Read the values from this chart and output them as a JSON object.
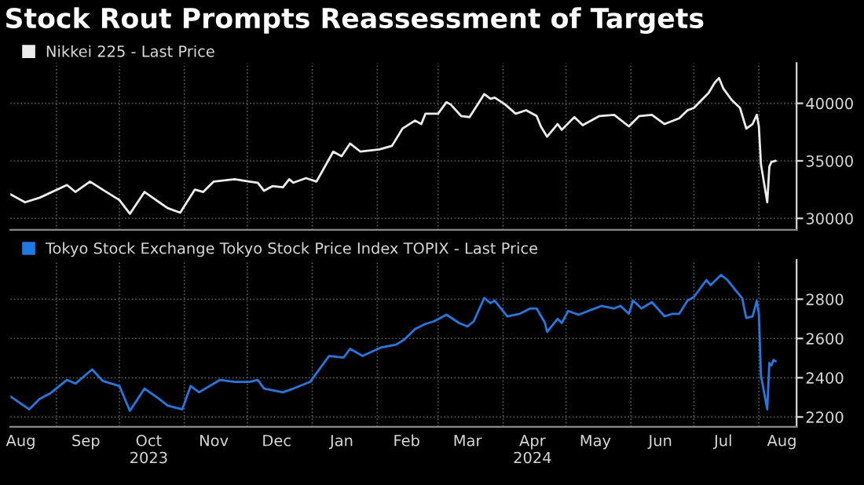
{
  "chart_data": [
    {
      "type": "line",
      "title": "Stock Rout Prompts Reassessment of Targets",
      "legend": "top left",
      "grid": true,
      "tick_labels": "y",
      "ylim": [
        29000,
        43500
      ],
      "yticks": [
        30000,
        35000,
        40000
      ],
      "xlim": [
        "2023-08-10",
        "2024-08-19"
      ],
      "xticks": [
        {
          "value": "2023-09-01",
          "label": null
        },
        {
          "value": "2023-10-01",
          "label": null
        },
        {
          "value": "2023-11-01",
          "label": null
        },
        {
          "value": "2023-12-01",
          "label": null
        },
        {
          "value": "2024-01-01",
          "label": null
        },
        {
          "value": "2024-02-01",
          "label": null
        },
        {
          "value": "2024-03-01",
          "label": null
        },
        {
          "value": "2024-04-01",
          "label": null
        },
        {
          "value": "2024-05-01",
          "label": null
        },
        {
          "value": "2024-06-01",
          "label": null
        },
        {
          "value": "2024-07-01",
          "label": null
        },
        {
          "value": "2024-08-01",
          "label": null
        }
      ],
      "series": [
        {
          "name": "Nikkei 225 - Last Price",
          "color": "#ececec",
          "x": [
            "2023-08-10",
            "2023-08-17",
            "2023-08-24",
            "2023-09-06",
            "2023-09-10",
            "2023-09-17",
            "2023-09-23",
            "2023-10-01",
            "2023-10-06",
            "2023-10-13",
            "2023-10-20",
            "2023-10-24",
            "2023-10-30",
            "2023-11-06",
            "2023-11-10",
            "2023-11-15",
            "2023-11-25",
            "2023-12-02",
            "2023-12-06",
            "2023-12-09",
            "2023-12-13",
            "2023-12-18",
            "2023-12-21",
            "2023-12-23",
            "2023-12-29",
            "2024-01-03",
            "2024-01-11",
            "2024-01-15",
            "2024-01-19",
            "2024-01-24",
            "2024-02-02",
            "2024-02-08",
            "2024-02-13",
            "2024-02-19",
            "2024-02-22",
            "2024-02-24",
            "2024-03-01",
            "2024-03-05",
            "2024-03-07",
            "2024-03-12",
            "2024-03-16",
            "2024-03-23",
            "2024-03-26",
            "2024-03-28",
            "2024-04-02",
            "2024-04-07",
            "2024-04-12",
            "2024-04-17",
            "2024-04-19",
            "2024-04-22",
            "2024-04-27",
            "2024-04-29",
            "2024-05-05",
            "2024-05-09",
            "2024-05-17",
            "2024-05-24",
            "2024-05-31",
            "2024-06-05",
            "2024-06-11",
            "2024-06-17",
            "2024-06-24",
            "2024-06-28",
            "2024-07-01",
            "2024-07-08",
            "2024-07-11",
            "2024-07-13",
            "2024-07-15",
            "2024-07-19",
            "2024-07-23",
            "2024-07-26",
            "2024-07-29",
            "2024-07-31",
            "2024-08-01",
            "2024-08-02",
            "2024-08-05",
            "2024-08-06",
            "2024-08-07",
            "2024-08-09"
          ],
          "values": [
            32100,
            31400,
            31800,
            32900,
            32300,
            33200,
            32500,
            31600,
            30400,
            32300,
            31400,
            30900,
            30500,
            32500,
            32300,
            33200,
            33400,
            33200,
            33100,
            32400,
            32800,
            32700,
            33400,
            33100,
            33500,
            33200,
            35800,
            35400,
            36500,
            35800,
            36000,
            36300,
            37800,
            38500,
            38200,
            39100,
            39100,
            40100,
            39900,
            38900,
            38800,
            40800,
            40400,
            40500,
            39900,
            39100,
            39400,
            38900,
            38000,
            37100,
            38200,
            37700,
            38800,
            38100,
            38900,
            39000,
            38000,
            38900,
            39000,
            38200,
            38700,
            39400,
            39600,
            40900,
            41800,
            42200,
            41300,
            40300,
            39600,
            37800,
            38200,
            39000,
            38000,
            34700,
            31400,
            34500,
            34900,
            35000
          ]
        }
      ]
    },
    {
      "type": "line",
      "grid": true,
      "legend": "top left",
      "ylim": [
        2150,
        3000
      ],
      "yticks": [
        2200,
        2400,
        2600,
        2800
      ],
      "xlim": [
        "2023-08-10",
        "2024-08-19"
      ],
      "xticks": [
        {
          "value": "2023-08-15",
          "label": "Aug"
        },
        {
          "value": "2023-09-01",
          "label": null
        },
        {
          "value": "2023-09-15",
          "label": "Sep"
        },
        {
          "value": "2023-10-01",
          "label": null
        },
        {
          "value": "2023-10-15",
          "label": "Oct\n2023"
        },
        {
          "value": "2023-11-01",
          "label": null
        },
        {
          "value": "2023-11-15",
          "label": "Nov"
        },
        {
          "value": "2023-12-01",
          "label": null
        },
        {
          "value": "2023-12-15",
          "label": "Dec"
        },
        {
          "value": "2024-01-01",
          "label": null
        },
        {
          "value": "2024-01-15",
          "label": "Jan"
        },
        {
          "value": "2024-02-01",
          "label": null
        },
        {
          "value": "2024-02-15",
          "label": "Feb"
        },
        {
          "value": "2024-03-01",
          "label": null
        },
        {
          "value": "2024-03-15",
          "label": "Mar"
        },
        {
          "value": "2024-04-01",
          "label": null
        },
        {
          "value": "2024-04-15",
          "label": "Apr\n2024"
        },
        {
          "value": "2024-05-01",
          "label": null
        },
        {
          "value": "2024-05-15",
          "label": "May"
        },
        {
          "value": "2024-06-01",
          "label": null
        },
        {
          "value": "2024-06-15",
          "label": "Jun"
        },
        {
          "value": "2024-07-01",
          "label": null
        },
        {
          "value": "2024-07-15",
          "label": "Jul"
        },
        {
          "value": "2024-08-01",
          "label": null
        },
        {
          "value": "2024-08-12",
          "label": "Aug"
        }
      ],
      "series": [
        {
          "name": "Tokyo Stock Exchange Tokyo Stock Price Index TOPIX - Last Price",
          "color": "#1e7ae6",
          "x": [
            "2023-08-10",
            "2023-08-19",
            "2023-08-24",
            "2023-08-29",
            "2023-09-06",
            "2023-09-10",
            "2023-09-18",
            "2023-09-23",
            "2023-10-01",
            "2023-10-06",
            "2023-10-13",
            "2023-10-20",
            "2023-10-24",
            "2023-10-31",
            "2023-11-04",
            "2023-11-08",
            "2023-11-18",
            "2023-11-25",
            "2023-12-02",
            "2023-12-06",
            "2023-12-09",
            "2023-12-18",
            "2023-12-23",
            "2023-12-31",
            "2024-01-09",
            "2024-01-16",
            "2024-01-19",
            "2024-01-25",
            "2024-02-03",
            "2024-02-10",
            "2024-02-14",
            "2024-02-19",
            "2024-02-24",
            "2024-02-28",
            "2024-03-05",
            "2024-03-11",
            "2024-03-15",
            "2024-03-18",
            "2024-03-23",
            "2024-03-26",
            "2024-03-28",
            "2024-04-03",
            "2024-04-09",
            "2024-04-14",
            "2024-04-17",
            "2024-04-21",
            "2024-04-22",
            "2024-04-27",
            "2024-04-29",
            "2024-05-02",
            "2024-05-07",
            "2024-05-18",
            "2024-05-24",
            "2024-05-27",
            "2024-05-31",
            "2024-06-02",
            "2024-06-06",
            "2024-06-11",
            "2024-06-17",
            "2024-06-21",
            "2024-06-24",
            "2024-06-28",
            "2024-07-01",
            "2024-07-07",
            "2024-07-09",
            "2024-07-14",
            "2024-07-17",
            "2024-07-21",
            "2024-07-24",
            "2024-07-26",
            "2024-07-29",
            "2024-07-31",
            "2024-08-01",
            "2024-08-02",
            "2024-08-05",
            "2024-08-06",
            "2024-08-07",
            "2024-08-08",
            "2024-08-09"
          ],
          "values": [
            2305,
            2239,
            2292,
            2320,
            2389,
            2370,
            2442,
            2384,
            2358,
            2231,
            2345,
            2292,
            2258,
            2239,
            2358,
            2326,
            2389,
            2379,
            2379,
            2389,
            2345,
            2326,
            2345,
            2379,
            2511,
            2503,
            2547,
            2511,
            2555,
            2569,
            2595,
            2648,
            2674,
            2687,
            2721,
            2679,
            2661,
            2687,
            2806,
            2780,
            2793,
            2713,
            2726,
            2753,
            2753,
            2679,
            2634,
            2700,
            2679,
            2740,
            2721,
            2766,
            2753,
            2766,
            2726,
            2793,
            2753,
            2785,
            2713,
            2726,
            2726,
            2793,
            2811,
            2898,
            2872,
            2924,
            2898,
            2845,
            2806,
            2705,
            2713,
            2792,
            2726,
            2410,
            2239,
            2476,
            2463,
            2490,
            2484
          ]
        }
      ]
    }
  ]
}
